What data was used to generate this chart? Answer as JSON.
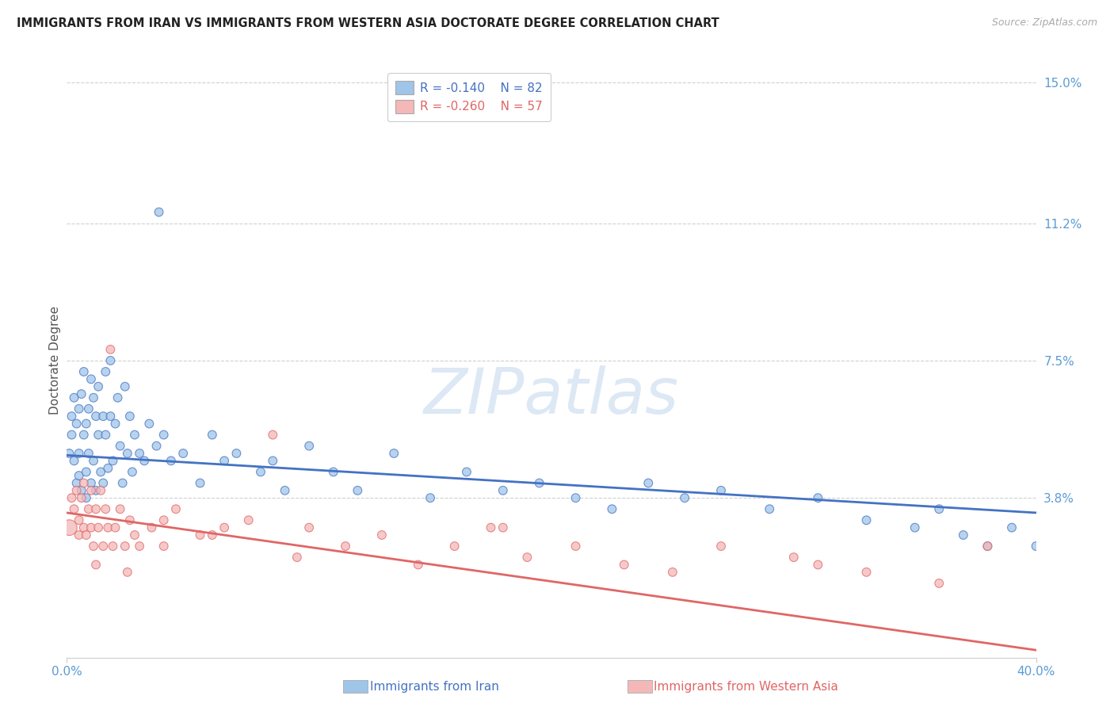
{
  "title": "IMMIGRANTS FROM IRAN VS IMMIGRANTS FROM WESTERN ASIA DOCTORATE DEGREE CORRELATION CHART",
  "source_text": "Source: ZipAtlas.com",
  "ylabel": "Doctorate Degree",
  "xlim": [
    0.0,
    0.4
  ],
  "ylim": [
    -0.005,
    0.155
  ],
  "ytick_labels_right": [
    "15.0%",
    "11.2%",
    "7.5%",
    "3.8%"
  ],
  "yticks_right": [
    0.15,
    0.112,
    0.075,
    0.038
  ],
  "grid_color": "#d0d0d0",
  "background_color": "#ffffff",
  "iran_line_color": "#4472c4",
  "west_line_color": "#e06666",
  "iran_scatter_color": "#9fc5e8",
  "west_scatter_color": "#f4b8b8",
  "legend_box_color_iran": "#9fc5e8",
  "legend_box_color_west": "#f4b8b8",
  "legend_text_color_iran": "#4472c4",
  "legend_text_color_west": "#e06666",
  "watermark": "ZIPatlas",
  "watermark_color": "#dde8f5",
  "title_color": "#222222",
  "axis_label_color": "#555555",
  "tick_color": "#5b9bd5",
  "iran_line_x": [
    0.0,
    0.4
  ],
  "iran_line_y": [
    0.0495,
    0.034
  ],
  "west_line_x": [
    0.0,
    0.4
  ],
  "west_line_y": [
    0.034,
    -0.003
  ],
  "iran_R": "-0.140",
  "iran_N": "82",
  "west_R": "-0.260",
  "west_N": "57",
  "iran_x": [
    0.001,
    0.002,
    0.002,
    0.003,
    0.003,
    0.004,
    0.004,
    0.005,
    0.005,
    0.005,
    0.006,
    0.006,
    0.007,
    0.007,
    0.008,
    0.008,
    0.008,
    0.009,
    0.009,
    0.01,
    0.01,
    0.011,
    0.011,
    0.012,
    0.012,
    0.013,
    0.013,
    0.014,
    0.015,
    0.015,
    0.016,
    0.016,
    0.017,
    0.018,
    0.018,
    0.019,
    0.02,
    0.021,
    0.022,
    0.023,
    0.024,
    0.025,
    0.026,
    0.027,
    0.028,
    0.03,
    0.032,
    0.034,
    0.037,
    0.04,
    0.043,
    0.048,
    0.055,
    0.06,
    0.065,
    0.07,
    0.08,
    0.085,
    0.09,
    0.1,
    0.11,
    0.12,
    0.135,
    0.15,
    0.165,
    0.18,
    0.195,
    0.21,
    0.225,
    0.24,
    0.255,
    0.27,
    0.29,
    0.31,
    0.33,
    0.35,
    0.36,
    0.37,
    0.38,
    0.39,
    0.4,
    0.038
  ],
  "iran_y": [
    0.05,
    0.055,
    0.06,
    0.048,
    0.065,
    0.042,
    0.058,
    0.044,
    0.062,
    0.05,
    0.066,
    0.04,
    0.055,
    0.072,
    0.038,
    0.058,
    0.045,
    0.062,
    0.05,
    0.07,
    0.042,
    0.065,
    0.048,
    0.06,
    0.04,
    0.055,
    0.068,
    0.045,
    0.06,
    0.042,
    0.055,
    0.072,
    0.046,
    0.06,
    0.075,
    0.048,
    0.058,
    0.065,
    0.052,
    0.042,
    0.068,
    0.05,
    0.06,
    0.045,
    0.055,
    0.05,
    0.048,
    0.058,
    0.052,
    0.055,
    0.048,
    0.05,
    0.042,
    0.055,
    0.048,
    0.05,
    0.045,
    0.048,
    0.04,
    0.052,
    0.045,
    0.04,
    0.05,
    0.038,
    0.045,
    0.04,
    0.042,
    0.038,
    0.035,
    0.042,
    0.038,
    0.04,
    0.035,
    0.038,
    0.032,
    0.03,
    0.035,
    0.028,
    0.025,
    0.03,
    0.025,
    0.115
  ],
  "iran_sizes": [
    60,
    60,
    60,
    60,
    60,
    60,
    60,
    60,
    60,
    60,
    60,
    60,
    60,
    60,
    60,
    60,
    60,
    60,
    60,
    60,
    60,
    60,
    60,
    60,
    60,
    60,
    60,
    60,
    60,
    60,
    60,
    60,
    60,
    60,
    60,
    60,
    60,
    60,
    60,
    60,
    60,
    60,
    60,
    60,
    60,
    60,
    60,
    60,
    60,
    60,
    60,
    60,
    60,
    60,
    60,
    60,
    60,
    60,
    60,
    60,
    60,
    60,
    60,
    60,
    60,
    60,
    60,
    60,
    60,
    60,
    60,
    60,
    60,
    60,
    60,
    60,
    60,
    60,
    60,
    60,
    60,
    60
  ],
  "west_x": [
    0.001,
    0.002,
    0.003,
    0.004,
    0.005,
    0.005,
    0.006,
    0.007,
    0.007,
    0.008,
    0.009,
    0.01,
    0.01,
    0.011,
    0.012,
    0.013,
    0.014,
    0.015,
    0.016,
    0.017,
    0.018,
    0.019,
    0.02,
    0.022,
    0.024,
    0.026,
    0.028,
    0.03,
    0.035,
    0.04,
    0.045,
    0.055,
    0.065,
    0.075,
    0.085,
    0.1,
    0.115,
    0.13,
    0.145,
    0.16,
    0.175,
    0.19,
    0.21,
    0.23,
    0.25,
    0.27,
    0.3,
    0.33,
    0.36,
    0.38,
    0.31,
    0.18,
    0.095,
    0.06,
    0.04,
    0.025,
    0.012
  ],
  "west_y": [
    0.03,
    0.038,
    0.035,
    0.04,
    0.028,
    0.032,
    0.038,
    0.03,
    0.042,
    0.028,
    0.035,
    0.03,
    0.04,
    0.025,
    0.035,
    0.03,
    0.04,
    0.025,
    0.035,
    0.03,
    0.078,
    0.025,
    0.03,
    0.035,
    0.025,
    0.032,
    0.028,
    0.025,
    0.03,
    0.025,
    0.035,
    0.028,
    0.03,
    0.032,
    0.055,
    0.03,
    0.025,
    0.028,
    0.02,
    0.025,
    0.03,
    0.022,
    0.025,
    0.02,
    0.018,
    0.025,
    0.022,
    0.018,
    0.015,
    0.025,
    0.02,
    0.03,
    0.022,
    0.028,
    0.032,
    0.018,
    0.02
  ],
  "west_sizes": [
    200,
    60,
    60,
    60,
    60,
    60,
    60,
    60,
    60,
    60,
    60,
    60,
    60,
    60,
    60,
    60,
    60,
    60,
    60,
    60,
    60,
    60,
    60,
    60,
    60,
    60,
    60,
    60,
    60,
    60,
    60,
    60,
    60,
    60,
    60,
    60,
    60,
    60,
    60,
    60,
    60,
    60,
    60,
    60,
    60,
    60,
    60,
    60,
    60,
    60,
    60,
    60,
    60,
    60,
    60,
    60,
    60
  ]
}
